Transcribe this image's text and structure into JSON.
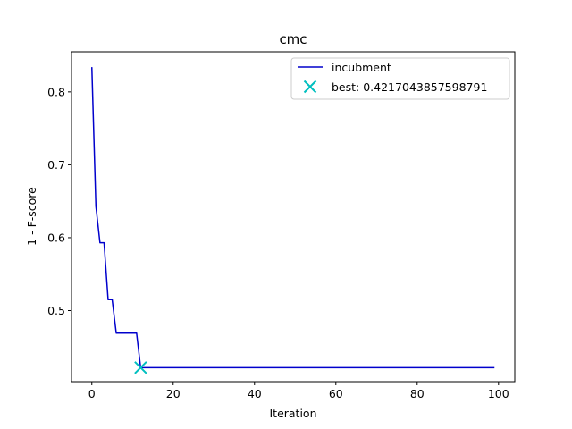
{
  "chart_data": {
    "type": "line",
    "title": "cmc",
    "xlabel": "Iteration",
    "ylabel": "1 - F-score",
    "xlim": [
      -5,
      104
    ],
    "ylim": [
      0.4025,
      0.855
    ],
    "xticks": [
      0,
      20,
      40,
      60,
      80,
      100
    ],
    "yticks": [
      0.5,
      0.6,
      0.7,
      0.8
    ],
    "ytick_labels": [
      "0.5",
      "0.6",
      "0.7",
      "0.8"
    ],
    "xtick_labels": [
      "0",
      "20",
      "40",
      "60",
      "80",
      "100"
    ],
    "grid": false,
    "legend_position": "top-right",
    "series": [
      {
        "name": "incubment",
        "color": "#0000cc",
        "x": [
          0,
          1,
          2,
          3,
          4,
          5,
          6,
          7,
          8,
          9,
          10,
          11,
          12,
          99
        ],
        "y": [
          0.834,
          0.643,
          0.593,
          0.593,
          0.515,
          0.515,
          0.469,
          0.469,
          0.469,
          0.469,
          0.469,
          0.469,
          0.4217,
          0.4217
        ]
      }
    ],
    "best_point": {
      "label": "best: 0.4217043857598791",
      "x": 12,
      "y": 0.4217043857598791,
      "color": "#00bfbf",
      "marker": "x"
    }
  }
}
